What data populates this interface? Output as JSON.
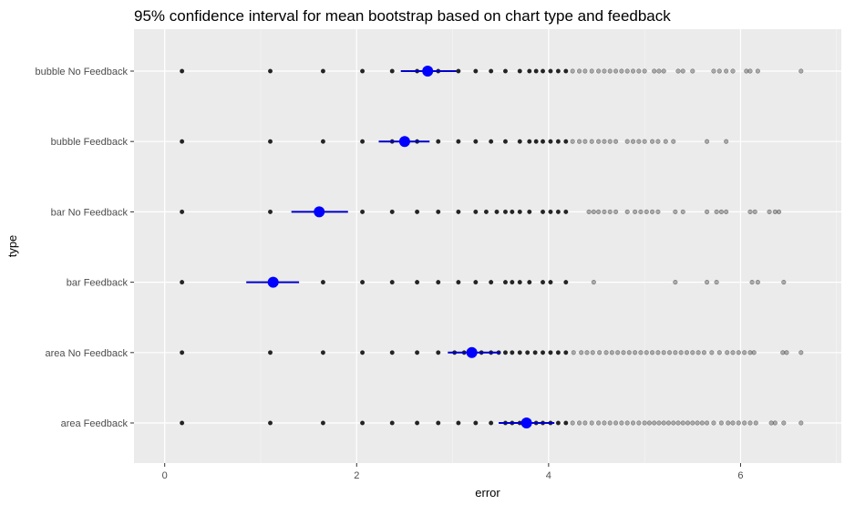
{
  "chart_data": {
    "type": "scatter",
    "title": "95% confidence interval for mean bootstrap based on chart type and feedback",
    "xlabel": "error",
    "ylabel": "type",
    "xlim": [
      -0.32,
      7.05
    ],
    "x_ticks": [
      0,
      2,
      4,
      6
    ],
    "x_tick_labels": [
      "0",
      "2",
      "4",
      "6"
    ],
    "grid": true,
    "categories": [
      "area Feedback",
      "area No Feedback",
      "bar Feedback",
      "bar No Feedback",
      "bubble Feedback",
      "bubble No Feedback"
    ],
    "colors": {
      "panel_bg": "#ebebeb",
      "grid_major": "#ffffff",
      "points": "#000000",
      "mean_marker": "#0000ff",
      "ci_line": "#0000cc"
    },
    "summary": [
      {
        "category": "area Feedback",
        "mean": 3.77,
        "ci_low": 3.48,
        "ci_high": 4.06
      },
      {
        "category": "area No Feedback",
        "mean": 3.2,
        "ci_low": 2.95,
        "ci_high": 3.5
      },
      {
        "category": "bar Feedback",
        "mean": 1.13,
        "ci_low": 0.85,
        "ci_high": 1.4
      },
      {
        "category": "bar No Feedback",
        "mean": 1.61,
        "ci_low": 1.32,
        "ci_high": 1.91
      },
      {
        "category": "bubble Feedback",
        "mean": 2.5,
        "ci_low": 2.23,
        "ci_high": 2.76
      },
      {
        "category": "bubble No Feedback",
        "mean": 2.74,
        "ci_low": 2.46,
        "ci_high": 3.04
      }
    ],
    "series": [
      {
        "category": "area Feedback",
        "x": [
          0.18,
          1.1,
          1.65,
          2.06,
          2.37,
          2.63,
          2.85,
          3.06,
          3.24,
          3.4,
          3.55,
          3.62,
          3.7,
          3.8,
          3.87,
          3.94,
          4.02,
          4.1,
          4.18,
          4.25,
          4.32,
          4.38,
          4.45,
          4.52,
          4.58,
          4.64,
          4.7,
          4.76,
          4.82,
          4.88,
          4.94,
          5.0,
          5.05,
          5.1,
          5.15,
          5.2,
          5.25,
          5.3,
          5.35,
          5.4,
          5.45,
          5.5,
          5.55,
          5.6,
          5.65,
          5.72,
          5.8,
          5.87,
          5.92,
          5.98,
          6.04,
          6.1,
          6.16,
          6.32,
          6.36,
          6.45,
          6.63
        ]
      },
      {
        "category": "area No Feedback",
        "x": [
          0.18,
          1.1,
          1.65,
          2.06,
          2.37,
          2.63,
          2.85,
          3.02,
          3.12,
          3.3,
          3.4,
          3.48,
          3.55,
          3.62,
          3.7,
          3.78,
          3.86,
          3.94,
          4.02,
          4.1,
          4.18,
          4.26,
          4.34,
          4.4,
          4.46,
          4.53,
          4.6,
          4.66,
          4.72,
          4.78,
          4.84,
          4.9,
          4.96,
          5.02,
          5.08,
          5.14,
          5.2,
          5.26,
          5.32,
          5.38,
          5.44,
          5.5,
          5.56,
          5.62,
          5.7,
          5.78,
          5.86,
          5.92,
          5.98,
          6.04,
          6.1,
          6.14,
          6.44,
          6.48,
          6.63
        ]
      },
      {
        "category": "bar Feedback",
        "x": [
          0.18,
          1.65,
          2.06,
          2.37,
          2.63,
          2.85,
          3.06,
          3.24,
          3.4,
          3.55,
          3.62,
          3.7,
          3.8,
          3.94,
          4.02,
          4.18,
          4.47,
          5.32,
          5.65,
          5.75,
          6.12,
          6.18,
          6.45
        ]
      },
      {
        "category": "bar No Feedback",
        "x": [
          0.18,
          1.1,
          2.06,
          2.37,
          2.63,
          2.85,
          3.06,
          3.24,
          3.35,
          3.46,
          3.55,
          3.62,
          3.7,
          3.8,
          3.94,
          4.02,
          4.1,
          4.18,
          4.42,
          4.47,
          4.52,
          4.58,
          4.64,
          4.7,
          4.82,
          4.9,
          4.96,
          5.02,
          5.08,
          5.14,
          5.32,
          5.4,
          5.65,
          5.75,
          5.8,
          5.85,
          6.1,
          6.15,
          6.3,
          6.36,
          6.4
        ]
      },
      {
        "category": "bubble Feedback",
        "x": [
          0.18,
          1.1,
          1.65,
          2.06,
          2.37,
          2.63,
          2.85,
          3.06,
          3.24,
          3.4,
          3.55,
          3.7,
          3.8,
          3.87,
          3.94,
          4.02,
          4.1,
          4.18,
          4.25,
          4.32,
          4.38,
          4.45,
          4.52,
          4.58,
          4.64,
          4.7,
          4.82,
          4.88,
          4.94,
          5.0,
          5.08,
          5.14,
          5.22,
          5.3,
          5.65,
          5.85
        ]
      },
      {
        "category": "bubble No Feedback",
        "x": [
          0.18,
          1.1,
          1.65,
          2.06,
          2.37,
          2.63,
          2.85,
          3.06,
          3.24,
          3.4,
          3.55,
          3.7,
          3.8,
          3.87,
          3.94,
          4.02,
          4.1,
          4.18,
          4.25,
          4.32,
          4.38,
          4.45,
          4.52,
          4.58,
          4.64,
          4.7,
          4.76,
          4.82,
          4.88,
          4.94,
          5.0,
          5.1,
          5.15,
          5.2,
          5.35,
          5.4,
          5.5,
          5.72,
          5.78,
          5.85,
          5.92,
          6.06,
          6.1,
          6.18,
          6.63
        ]
      }
    ]
  }
}
